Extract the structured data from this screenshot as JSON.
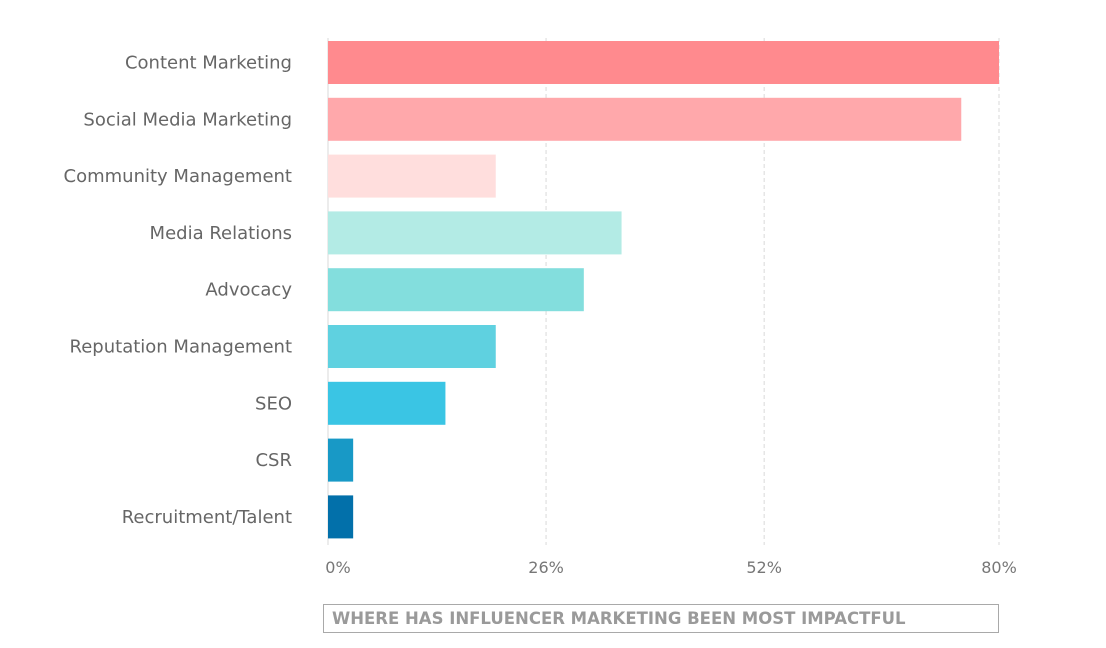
{
  "chart_data": {
    "type": "bar",
    "orientation": "horizontal",
    "title": "WHERE HAS INFLUENCER MARKETING BEEN MOST IMPACTFUL",
    "categories": [
      "Content Marketing",
      "Social Media Marketing",
      "Community Management",
      "Media Relations",
      "Advocacy",
      "Reputation Management",
      "SEO",
      "CSR",
      "Recruitment/Talent"
    ],
    "values": [
      80,
      75.5,
      20,
      35,
      30.5,
      20,
      14,
      3,
      3
    ],
    "colors": [
      "#ff8a8e",
      "#ffa8ab",
      "#ffdedd",
      "#b3ebe5",
      "#83dedd",
      "#5fd1e0",
      "#3ac5e4",
      "#1899c6",
      "#0270aa"
    ],
    "xlim": [
      0,
      80
    ],
    "x_ticks": [
      0,
      26,
      52,
      80
    ],
    "x_tick_labels": [
      "0%",
      "26%",
      "52%",
      "80%"
    ],
    "grid": true,
    "xlabel": "",
    "ylabel": ""
  }
}
